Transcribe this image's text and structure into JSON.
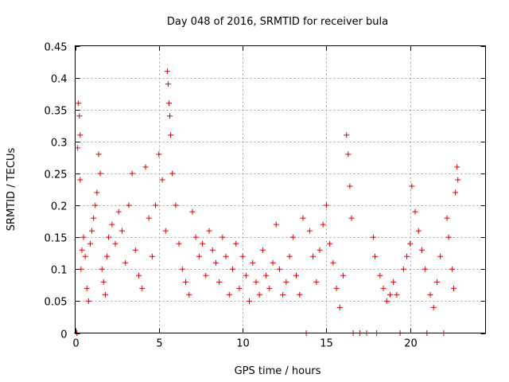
{
  "chart_data": {
    "type": "scatter",
    "title": "Day 048 of 2016, SRMTID for receiver bula",
    "xlabel": "GPS time / hours",
    "ylabel": "SRMTID / TECUs",
    "xlim": [
      0,
      24.5
    ],
    "ylim": [
      0,
      0.45
    ],
    "xticks": [
      0,
      5,
      10,
      15,
      20
    ],
    "xtick_labels": [
      "0",
      "5",
      "10",
      "15",
      "20"
    ],
    "yticks": [
      0,
      0.05,
      0.1,
      0.15,
      0.2,
      0.25,
      0.3,
      0.35,
      0.4,
      0.45
    ],
    "ytick_labels": [
      "0",
      "0.05",
      "0.1",
      "0.15",
      "0.2",
      "0.25",
      "0.3",
      "0.35",
      "0.4",
      "0.45"
    ],
    "grid": true,
    "marker": "+",
    "marker_color": "#dd0000",
    "series": [
      {
        "name": "SRMTID",
        "points": [
          [
            0.1,
            0.0
          ],
          [
            0.15,
            0.29
          ],
          [
            0.2,
            0.36
          ],
          [
            0.25,
            0.34
          ],
          [
            0.3,
            0.31
          ],
          [
            0.3,
            0.24
          ],
          [
            0.35,
            0.1
          ],
          [
            0.4,
            0.13
          ],
          [
            0.5,
            0.15
          ],
          [
            0.6,
            0.12
          ],
          [
            0.7,
            0.07
          ],
          [
            0.8,
            0.05
          ],
          [
            0.9,
            0.14
          ],
          [
            1.0,
            0.16
          ],
          [
            1.1,
            0.18
          ],
          [
            1.2,
            0.2
          ],
          [
            1.3,
            0.22
          ],
          [
            1.4,
            0.28
          ],
          [
            1.5,
            0.25
          ],
          [
            1.6,
            0.1
          ],
          [
            1.7,
            0.08
          ],
          [
            1.8,
            0.06
          ],
          [
            1.9,
            0.12
          ],
          [
            2.0,
            0.15
          ],
          [
            2.2,
            0.17
          ],
          [
            2.4,
            0.14
          ],
          [
            2.6,
            0.19
          ],
          [
            2.8,
            0.16
          ],
          [
            3.0,
            0.11
          ],
          [
            3.2,
            0.2
          ],
          [
            3.4,
            0.25
          ],
          [
            3.6,
            0.13
          ],
          [
            3.8,
            0.09
          ],
          [
            4.0,
            0.07
          ],
          [
            4.2,
            0.26
          ],
          [
            4.4,
            0.18
          ],
          [
            4.6,
            0.12
          ],
          [
            4.8,
            0.2
          ],
          [
            5.0,
            0.28
          ],
          [
            5.2,
            0.24
          ],
          [
            5.4,
            0.16
          ],
          [
            5.5,
            0.41
          ],
          [
            5.55,
            0.39
          ],
          [
            5.6,
            0.36
          ],
          [
            5.65,
            0.34
          ],
          [
            5.7,
            0.31
          ],
          [
            5.8,
            0.25
          ],
          [
            6.0,
            0.2
          ],
          [
            6.2,
            0.14
          ],
          [
            6.4,
            0.1
          ],
          [
            6.6,
            0.08
          ],
          [
            6.8,
            0.06
          ],
          [
            7.0,
            0.19
          ],
          [
            7.2,
            0.15
          ],
          [
            7.4,
            0.12
          ],
          [
            7.6,
            0.14
          ],
          [
            7.8,
            0.09
          ],
          [
            8.0,
            0.16
          ],
          [
            8.2,
            0.13
          ],
          [
            8.4,
            0.11
          ],
          [
            8.6,
            0.08
          ],
          [
            8.8,
            0.15
          ],
          [
            9.0,
            0.12
          ],
          [
            9.2,
            0.06
          ],
          [
            9.4,
            0.1
          ],
          [
            9.6,
            0.14
          ],
          [
            9.8,
            0.07
          ],
          [
            10.0,
            0.12
          ],
          [
            10.2,
            0.09
          ],
          [
            10.4,
            0.05
          ],
          [
            10.6,
            0.11
          ],
          [
            10.8,
            0.08
          ],
          [
            11.0,
            0.06
          ],
          [
            11.2,
            0.13
          ],
          [
            11.4,
            0.09
          ],
          [
            11.6,
            0.07
          ],
          [
            11.8,
            0.11
          ],
          [
            12.0,
            0.17
          ],
          [
            12.2,
            0.1
          ],
          [
            12.4,
            0.06
          ],
          [
            12.6,
            0.08
          ],
          [
            12.8,
            0.12
          ],
          [
            13.0,
            0.15
          ],
          [
            13.2,
            0.09
          ],
          [
            13.4,
            0.06
          ],
          [
            13.6,
            0.18
          ],
          [
            13.8,
            0.0
          ],
          [
            14.0,
            0.16
          ],
          [
            14.2,
            0.12
          ],
          [
            14.4,
            0.08
          ],
          [
            14.6,
            0.13
          ],
          [
            14.8,
            0.17
          ],
          [
            15.0,
            0.2
          ],
          [
            15.2,
            0.14
          ],
          [
            15.4,
            0.11
          ],
          [
            15.6,
            0.07
          ],
          [
            15.8,
            0.04
          ],
          [
            16.0,
            0.09
          ],
          [
            16.2,
            0.31
          ],
          [
            16.3,
            0.28
          ],
          [
            16.4,
            0.23
          ],
          [
            16.5,
            0.18
          ],
          [
            16.6,
            0.0
          ],
          [
            17.0,
            0.0
          ],
          [
            17.4,
            0.0
          ],
          [
            17.8,
            0.15
          ],
          [
            17.9,
            0.12
          ],
          [
            18.0,
            0.0
          ],
          [
            18.2,
            0.09
          ],
          [
            18.4,
            0.07
          ],
          [
            18.6,
            0.05
          ],
          [
            18.8,
            0.06
          ],
          [
            19.0,
            0.08
          ],
          [
            19.2,
            0.06
          ],
          [
            19.4,
            0.0
          ],
          [
            19.6,
            0.1
          ],
          [
            19.8,
            0.12
          ],
          [
            20.0,
            0.14
          ],
          [
            20.1,
            0.23
          ],
          [
            20.3,
            0.19
          ],
          [
            20.5,
            0.16
          ],
          [
            20.7,
            0.13
          ],
          [
            20.9,
            0.1
          ],
          [
            21.0,
            0.0
          ],
          [
            21.2,
            0.06
          ],
          [
            21.4,
            0.04
          ],
          [
            21.6,
            0.08
          ],
          [
            21.8,
            0.12
          ],
          [
            22.0,
            0.0
          ],
          [
            22.2,
            0.18
          ],
          [
            22.3,
            0.15
          ],
          [
            22.5,
            0.1
          ],
          [
            22.6,
            0.07
          ],
          [
            22.7,
            0.22
          ],
          [
            22.8,
            0.26
          ],
          [
            22.85,
            0.24
          ]
        ]
      }
    ]
  }
}
